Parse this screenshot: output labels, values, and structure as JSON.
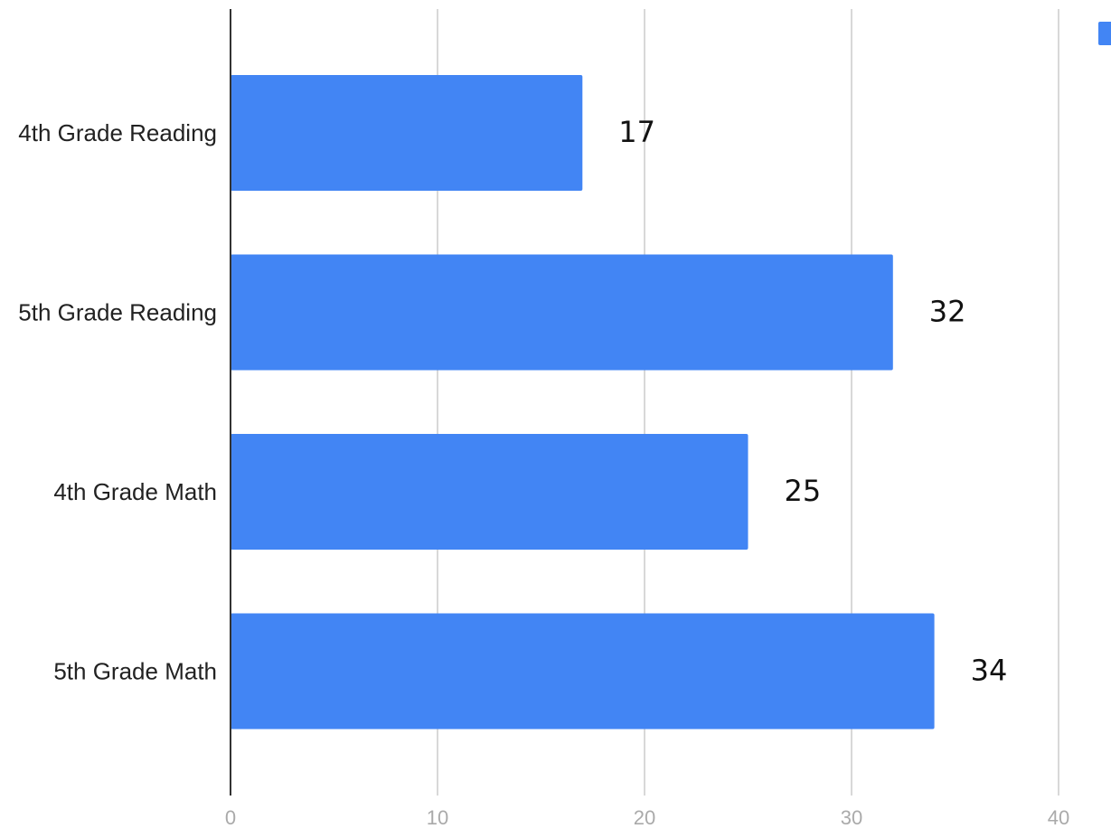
{
  "chart_data": {
    "type": "bar",
    "orientation": "horizontal",
    "categories": [
      "4th Grade Reading",
      "5th Grade Reading",
      "4th Grade Math",
      "5th Grade Math"
    ],
    "values": [
      17,
      32,
      25,
      34
    ],
    "data_labels": [
      "17",
      "32",
      "25",
      "34"
    ],
    "x_ticks": [
      "0",
      "10",
      "20",
      "30",
      "40"
    ],
    "xlim": [
      0,
      40
    ],
    "grid": true,
    "legend_position": "top-right",
    "bar_color": "#4285f4",
    "title": "",
    "xlabel": "",
    "ylabel": ""
  }
}
